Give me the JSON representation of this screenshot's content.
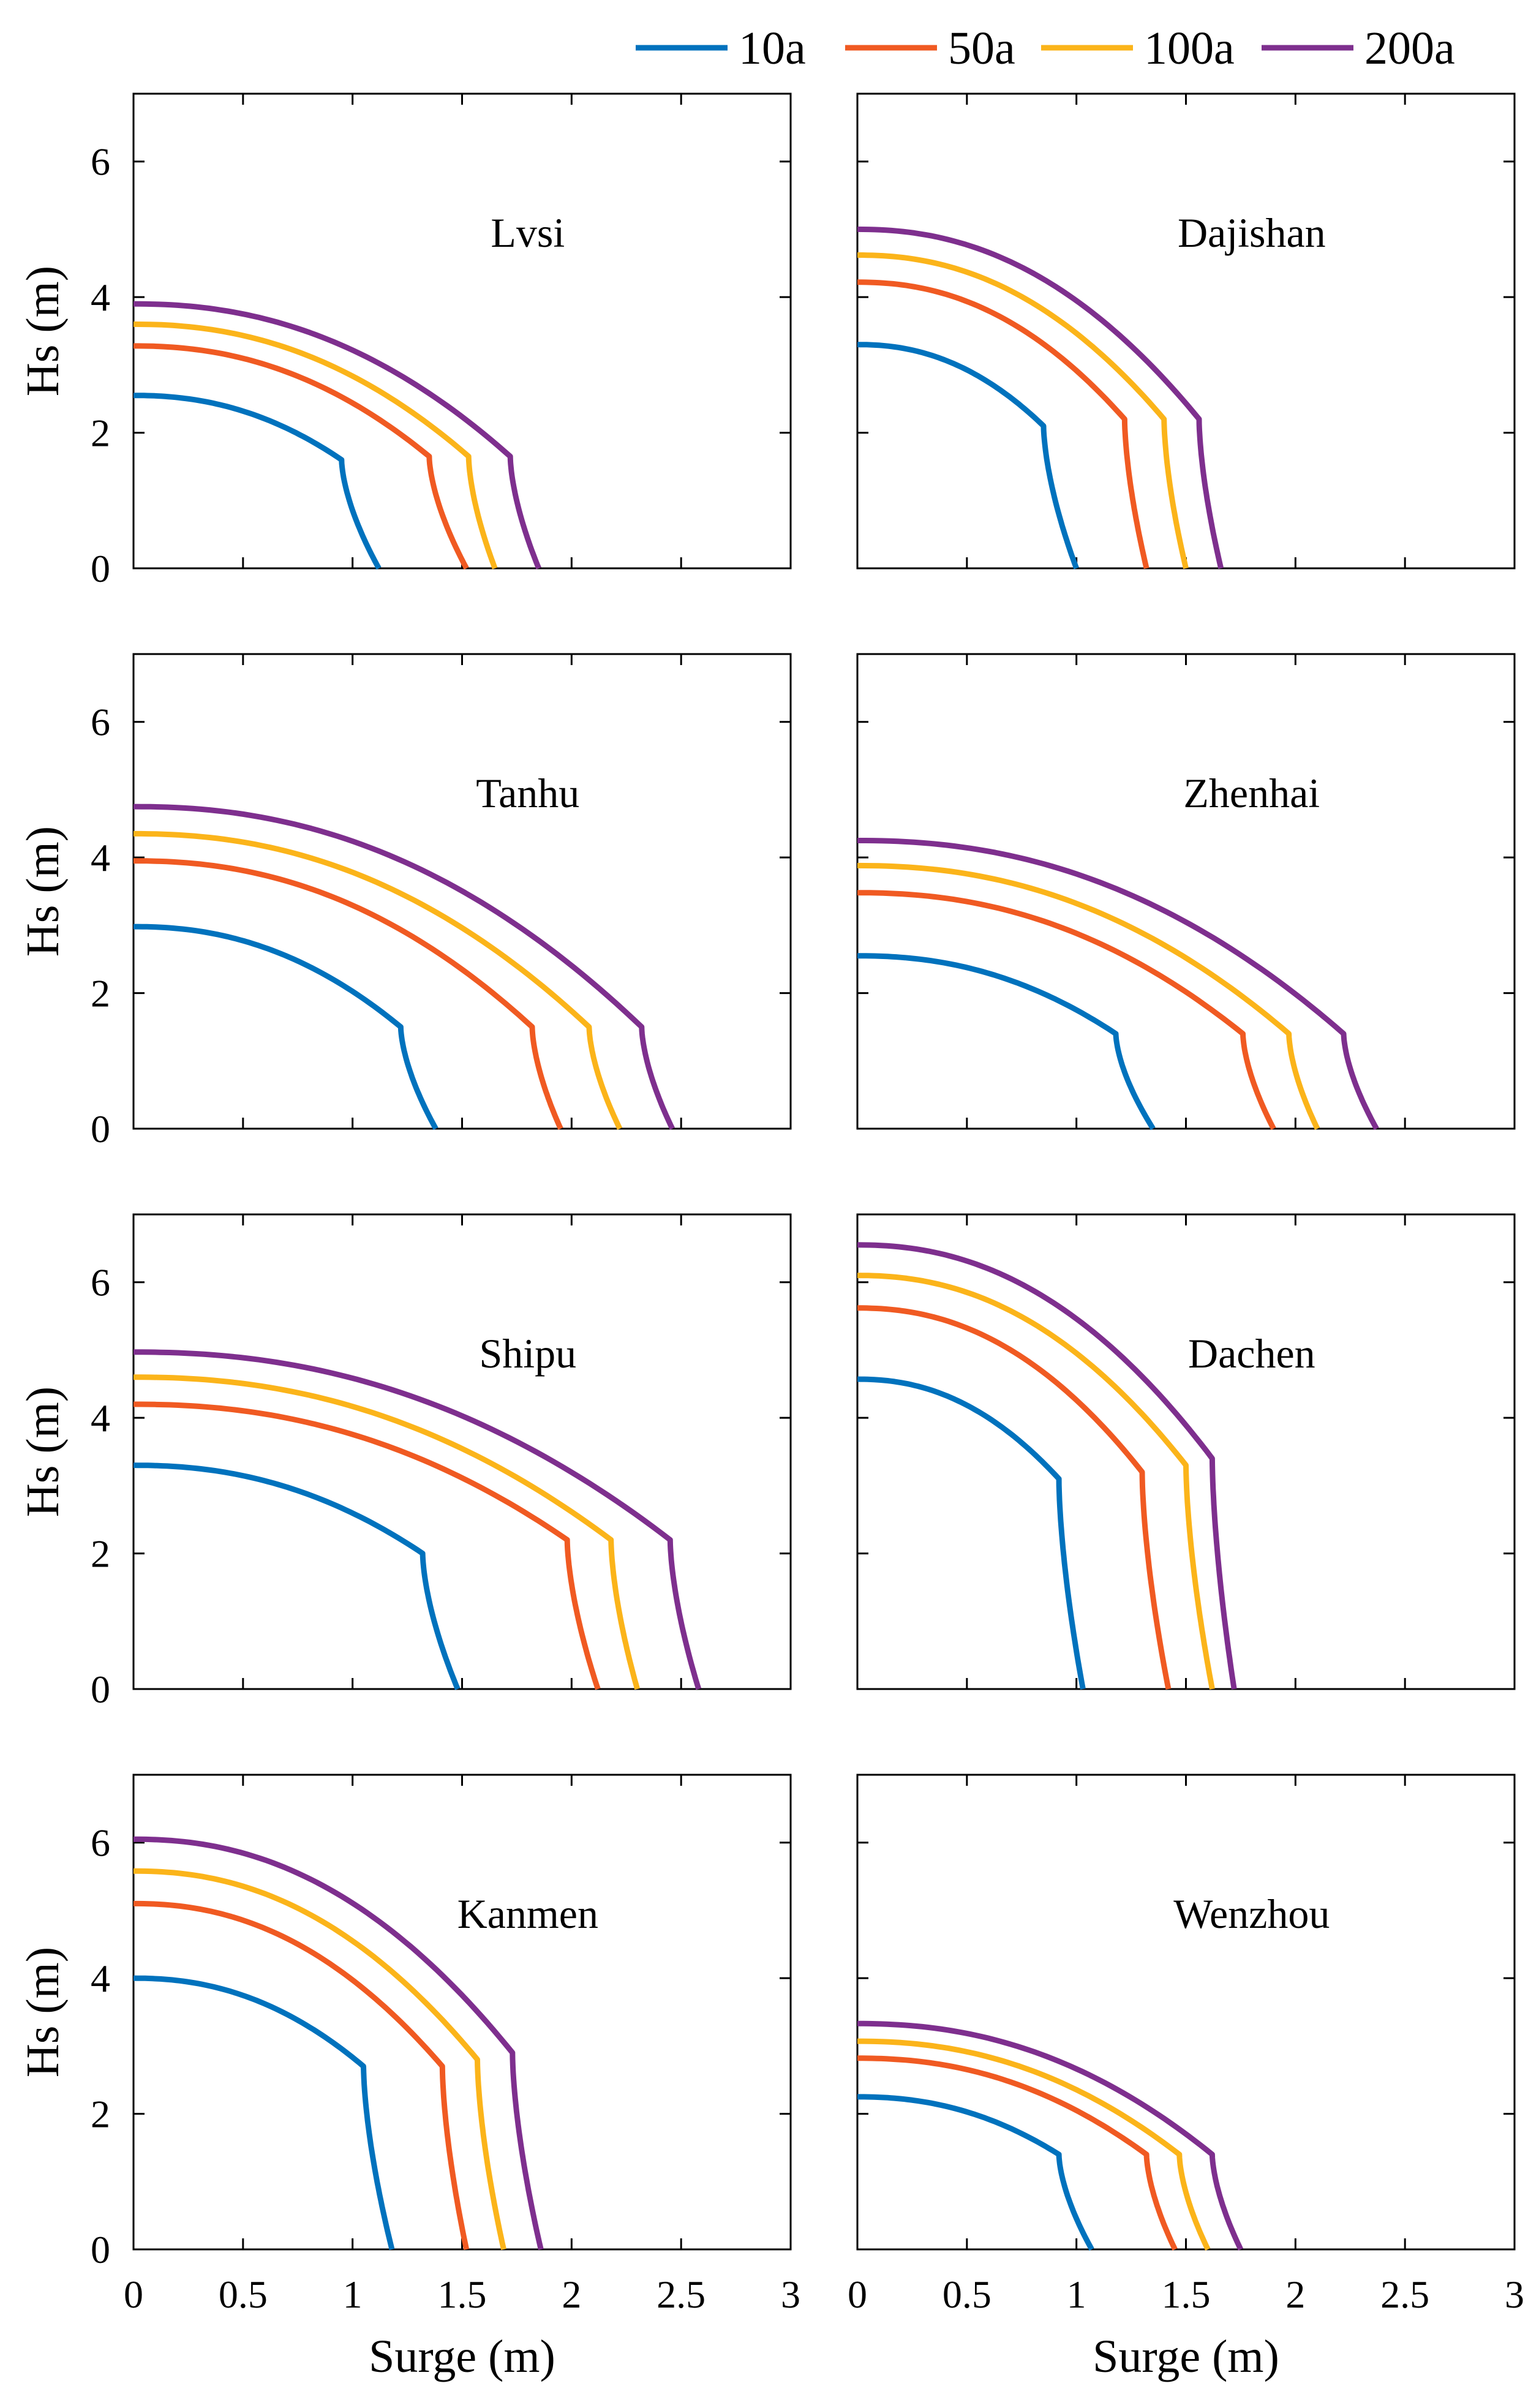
{
  "chart_data": {
    "type": "line",
    "title": "",
    "legend": {
      "placement": "top-right",
      "entries": [
        "10a",
        "50a",
        "100a",
        "200a"
      ]
    },
    "series_colors": {
      "10a": "#0072BD",
      "50a": "#F05A22",
      "100a": "#FBB41A",
      "200a": "#7E2F8E"
    },
    "xlabel": "Surge (m)",
    "ylabel": "Hs (m)",
    "xlim": [
      0,
      3
    ],
    "ylim": [
      0,
      7
    ],
    "xticks": [
      "0",
      "0.5",
      "1",
      "1.5",
      "2",
      "2.5",
      "3"
    ],
    "yticks": [
      "0",
      "2",
      "4",
      "6"
    ],
    "grid": false,
    "panels": [
      {
        "station": "Lvsi",
        "series": [
          {
            "name": "10a",
            "h0": 2.55,
            "xk": 0.95,
            "hk": 1.6,
            "x0": 1.12
          },
          {
            "name": "50a",
            "h0": 3.28,
            "xk": 1.35,
            "hk": 1.65,
            "x0": 1.52
          },
          {
            "name": "100a",
            "h0": 3.6,
            "xk": 1.53,
            "hk": 1.65,
            "x0": 1.65
          },
          {
            "name": "200a",
            "h0": 3.9,
            "xk": 1.72,
            "hk": 1.65,
            "x0": 1.85
          }
        ]
      },
      {
        "station": "Dajishan",
        "series": [
          {
            "name": "10a",
            "h0": 3.3,
            "xk": 0.85,
            "hk": 2.1,
            "x0": 1.0
          },
          {
            "name": "50a",
            "h0": 4.22,
            "xk": 1.22,
            "hk": 2.2,
            "x0": 1.32
          },
          {
            "name": "100a",
            "h0": 4.62,
            "xk": 1.4,
            "hk": 2.2,
            "x0": 1.5
          },
          {
            "name": "200a",
            "h0": 5.0,
            "xk": 1.56,
            "hk": 2.2,
            "x0": 1.66
          }
        ]
      },
      {
        "station": "Tanhu",
        "series": [
          {
            "name": "10a",
            "h0": 2.98,
            "xk": 1.22,
            "hk": 1.5,
            "x0": 1.38
          },
          {
            "name": "50a",
            "h0": 3.95,
            "xk": 1.82,
            "hk": 1.5,
            "x0": 1.95
          },
          {
            "name": "100a",
            "h0": 4.35,
            "xk": 2.08,
            "hk": 1.5,
            "x0": 2.22
          },
          {
            "name": "200a",
            "h0": 4.75,
            "xk": 2.32,
            "hk": 1.5,
            "x0": 2.46
          }
        ]
      },
      {
        "station": "Zhenhai",
        "series": [
          {
            "name": "10a",
            "h0": 2.55,
            "xk": 1.18,
            "hk": 1.4,
            "x0": 1.35
          },
          {
            "name": "50a",
            "h0": 3.48,
            "xk": 1.76,
            "hk": 1.4,
            "x0": 1.9
          },
          {
            "name": "100a",
            "h0": 3.88,
            "xk": 1.97,
            "hk": 1.4,
            "x0": 2.1
          },
          {
            "name": "200a",
            "h0": 4.25,
            "xk": 2.22,
            "hk": 1.4,
            "x0": 2.37
          }
        ]
      },
      {
        "station": "Shipu",
        "series": [
          {
            "name": "10a",
            "h0": 3.3,
            "xk": 1.32,
            "hk": 2.0,
            "x0": 1.48
          },
          {
            "name": "50a",
            "h0": 4.2,
            "xk": 1.98,
            "hk": 2.2,
            "x0": 2.12
          },
          {
            "name": "100a",
            "h0": 4.6,
            "xk": 2.18,
            "hk": 2.2,
            "x0": 2.3
          },
          {
            "name": "200a",
            "h0": 4.97,
            "xk": 2.45,
            "hk": 2.2,
            "x0": 2.58
          }
        ]
      },
      {
        "station": "Dachen",
        "series": [
          {
            "name": "10a",
            "h0": 4.57,
            "xk": 0.92,
            "hk": 3.1,
            "x0": 1.03
          },
          {
            "name": "50a",
            "h0": 5.62,
            "xk": 1.3,
            "hk": 3.2,
            "x0": 1.42
          },
          {
            "name": "100a",
            "h0": 6.1,
            "xk": 1.5,
            "hk": 3.3,
            "x0": 1.62
          },
          {
            "name": "200a",
            "h0": 6.55,
            "xk": 1.62,
            "hk": 3.4,
            "x0": 1.72
          }
        ]
      },
      {
        "station": "Kanmen",
        "series": [
          {
            "name": "10a",
            "h0": 4.0,
            "xk": 1.05,
            "hk": 2.7,
            "x0": 1.18
          },
          {
            "name": "50a",
            "h0": 5.1,
            "xk": 1.41,
            "hk": 2.7,
            "x0": 1.52
          },
          {
            "name": "100a",
            "h0": 5.58,
            "xk": 1.57,
            "hk": 2.8,
            "x0": 1.69
          },
          {
            "name": "200a",
            "h0": 6.05,
            "xk": 1.73,
            "hk": 2.9,
            "x0": 1.86
          }
        ]
      },
      {
        "station": "Wenzhou",
        "series": [
          {
            "name": "10a",
            "h0": 2.25,
            "xk": 0.92,
            "hk": 1.4,
            "x0": 1.07
          },
          {
            "name": "50a",
            "h0": 2.82,
            "xk": 1.32,
            "hk": 1.4,
            "x0": 1.45
          },
          {
            "name": "100a",
            "h0": 3.07,
            "xk": 1.47,
            "hk": 1.4,
            "x0": 1.6
          },
          {
            "name": "200a",
            "h0": 3.33,
            "xk": 1.62,
            "hk": 1.4,
            "x0": 1.75
          }
        ]
      }
    ]
  }
}
